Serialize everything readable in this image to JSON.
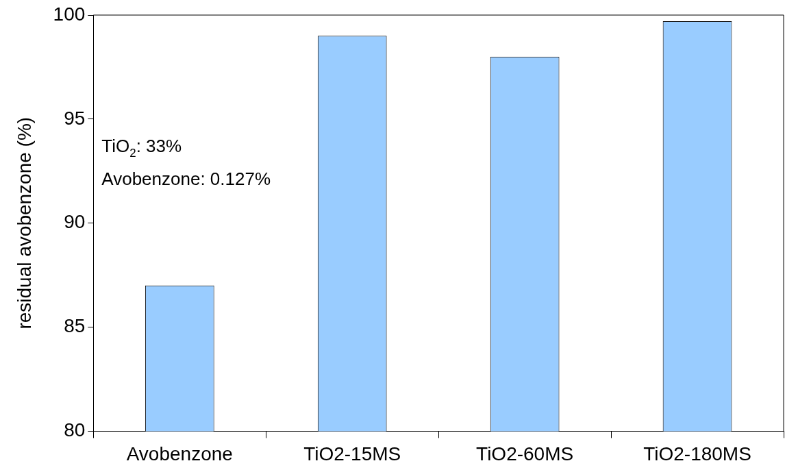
{
  "chart_data": {
    "type": "bar",
    "ylabel": "residual avobenzone (%)",
    "categories": [
      "Avobenzone",
      "TiO2-15MS",
      "TiO2-60MS",
      "TiO2-180MS"
    ],
    "values": [
      87,
      99,
      98,
      99.7
    ],
    "color": "#99ccff",
    "ylim": [
      80,
      100
    ],
    "yticks": [
      80,
      85,
      90,
      95,
      100
    ],
    "grid": false,
    "annotations": [
      "TiO$_{2}$: 33%",
      "Avobenzone: 0.127%"
    ]
  }
}
